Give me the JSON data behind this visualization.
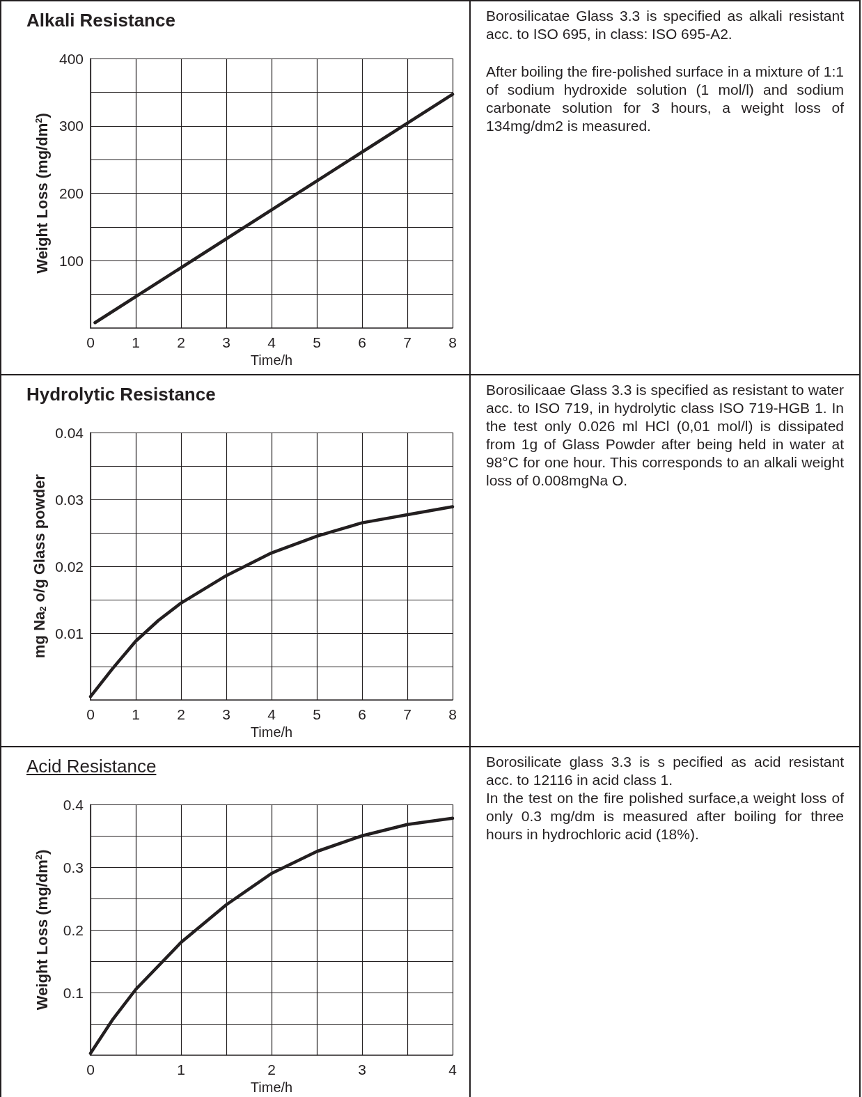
{
  "chart_data": [
    {
      "type": "line",
      "title": "Alkali Resistance",
      "xlabel": "Time/h",
      "ylabel": "Weight Loss (mg/dm$^{2}$)",
      "x": [
        0.1,
        8
      ],
      "series": [
        {
          "color": "#231f20",
          "values": [
            8,
            347
          ]
        }
      ],
      "xlim": [
        0,
        8
      ],
      "ylim": [
        0,
        400
      ],
      "xticks": [
        0,
        1,
        2,
        3,
        4,
        5,
        6,
        7,
        8
      ],
      "yticks": [
        {
          "value": 50,
          "label": null
        },
        100,
        {
          "value": 150,
          "label": null
        },
        200,
        {
          "value": 250,
          "label": null
        },
        300,
        {
          "value": 350,
          "label": null
        },
        400
      ],
      "grid": true,
      "marker": "none",
      "line_style": "solid",
      "annotations": [
        "Borosilicatae Glass 3.3 is specified as alkali resistant acc. to ISO 695, in class: ISO 695-A2.",
        "After boiling the fire-polished surface in a mixture of 1:1 of sodium hydroxide solution (1 mol/l) and sodium carbonate solution for 3 hours, a weight loss of 134mg/dm2 is measured."
      ]
    },
    {
      "type": "line",
      "title": "Hydrolytic Resistance",
      "xlabel": "Time/h",
      "ylabel": "mg Na$_{2}$ o/g Glass powder",
      "x": [
        0,
        0.5,
        1,
        1.5,
        2,
        3,
        4,
        5,
        6,
        7,
        8
      ],
      "series": [
        {
          "color": "#231f20",
          "values": [
            0.0005,
            0.0048,
            0.0088,
            0.0119,
            0.0145,
            0.0186,
            0.022,
            0.0245,
            0.0265,
            0.0277,
            0.0289
          ]
        }
      ],
      "xlim": [
        0,
        8
      ],
      "ylim": [
        0,
        0.04
      ],
      "xticks": [
        0,
        1,
        2,
        3,
        4,
        5,
        6,
        7,
        8
      ],
      "yticks": [
        {
          "value": 0.005,
          "label": null
        },
        0.01,
        {
          "value": 0.015,
          "label": null
        },
        0.02,
        {
          "value": 0.025,
          "label": null
        },
        0.03,
        {
          "value": 0.035,
          "label": null
        },
        0.04
      ],
      "grid": true,
      "marker": "none",
      "line_style": "solid",
      "annotations": [
        "Borosilicaae Glass 3.3 is specified as resistant to water acc. to ISO 719, in hydrolytic class ISO 719-HGB 1. In the test only 0.026 ml HCl (0,01 mol/l) is dissipated from 1g of Glass Powder after being held in water at 98°C for one hour. This corresponds to an alkali weight loss of 0.008mgNa O."
      ]
    },
    {
      "type": "line",
      "title": "Acid Resistance",
      "xlabel": "Time/h",
      "ylabel": "Weight Loss (mg/dm$^{2}$)",
      "x": [
        0,
        0.25,
        0.5,
        1,
        1.5,
        2,
        2.5,
        3,
        3.5,
        4
      ],
      "series": [
        {
          "color": "#231f20",
          "values": [
            0.003,
            0.058,
            0.105,
            0.18,
            0.24,
            0.29,
            0.325,
            0.35,
            0.368,
            0.378
          ]
        }
      ],
      "xlim": [
        0,
        4
      ],
      "ylim": [
        0,
        0.4
      ],
      "xticks": [
        0,
        {
          "value": 0.5,
          "label": null
        },
        1,
        {
          "value": 1.5,
          "label": null
        },
        2,
        {
          "value": 2.5,
          "label": null
        },
        3,
        {
          "value": 3.5,
          "label": null
        },
        4
      ],
      "yticks": [
        {
          "value": 0.05,
          "label": null
        },
        0.1,
        {
          "value": 0.15,
          "label": null
        },
        0.2,
        {
          "value": 0.25,
          "label": null
        },
        0.3,
        {
          "value": 0.35,
          "label": null
        },
        0.4
      ],
      "grid": true,
      "marker": "none",
      "line_style": "solid",
      "annotations": [
        "Borosilicate glass 3.3 is s pecified as acid resistant acc. to 12116 in acid class 1.",
        "In the test on the fire polished surface,a weight loss of only 0.3 mg/dm is measured after boiling for three hours in hydrochloric acid (18%)."
      ]
    }
  ]
}
